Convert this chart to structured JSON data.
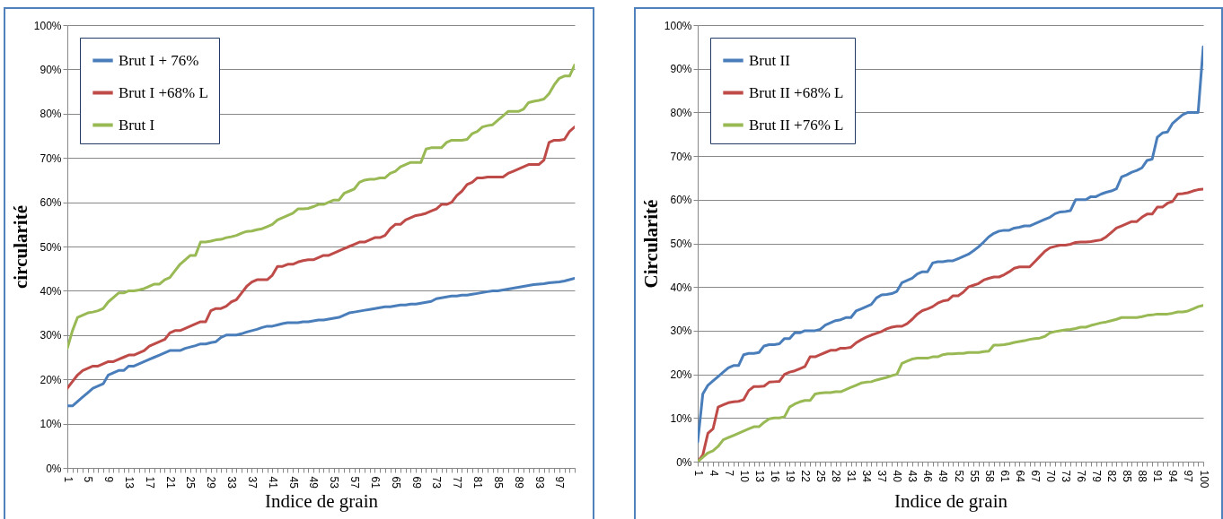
{
  "chart_data": [
    {
      "type": "line",
      "xlabel": "Indice de grain",
      "ylabel": "circularité",
      "categories": [
        "1",
        null,
        null,
        null,
        "5",
        null,
        null,
        null,
        "9",
        null,
        null,
        null,
        "13",
        null,
        null,
        null,
        "17",
        null,
        null,
        null,
        "21",
        null,
        null,
        null,
        "25",
        null,
        null,
        null,
        "29",
        null,
        null,
        null,
        "33",
        null,
        null,
        null,
        "37",
        null,
        null,
        null,
        "41",
        null,
        null,
        null,
        "45",
        null,
        null,
        null,
        "49",
        null,
        null,
        null,
        "53",
        null,
        null,
        null,
        "57",
        null,
        null,
        null,
        "61",
        null,
        null,
        null,
        "65",
        null,
        null,
        null,
        "69",
        null,
        null,
        null,
        "73",
        null,
        null,
        null,
        "77",
        null,
        null,
        null,
        "81",
        null,
        null,
        null,
        "85",
        null,
        null,
        null,
        "89",
        null,
        null,
        null,
        "93",
        null,
        null,
        null,
        "97",
        null,
        null,
        null
      ],
      "series": [
        {
          "name": "Brut I + 76%",
          "color": "#4a7ebb",
          "values": [
            14,
            14,
            15,
            16,
            17,
            18,
            18.5,
            19,
            21,
            21.5,
            22,
            22,
            23,
            23,
            23.5,
            24,
            24.5,
            25,
            25.5,
            26,
            26.5,
            26.5,
            26.5,
            27,
            27.3,
            27.6,
            28,
            28,
            28.3,
            28.5,
            29.5,
            30,
            30,
            30,
            30.3,
            30.7,
            31,
            31.3,
            31.7,
            32,
            32,
            32.3,
            32.6,
            32.8,
            32.8,
            32.8,
            33,
            33,
            33.2,
            33.4,
            33.4,
            33.6,
            33.8,
            34,
            34.5,
            35,
            35.2,
            35.4,
            35.6,
            35.8,
            36,
            36.2,
            36.4,
            36.4,
            36.6,
            36.8,
            36.8,
            37,
            37,
            37.2,
            37.4,
            37.6,
            38.2,
            38.4,
            38.6,
            38.8,
            38.8,
            39,
            39,
            39.2,
            39.4,
            39.6,
            39.8,
            40,
            40,
            40.2,
            40.4,
            40.6,
            40.8,
            41,
            41.2,
            41.4,
            41.5,
            41.6,
            41.8,
            41.9,
            42,
            42.2,
            42.5,
            42.8
          ]
        },
        {
          "name": "Brut I +68% L",
          "color": "#be4b48",
          "values": [
            18,
            19.5,
            21,
            22,
            22.5,
            23,
            23,
            23.5,
            24,
            24,
            24.5,
            25,
            25.5,
            25.5,
            26,
            26.5,
            27.5,
            28,
            28.5,
            29,
            30.5,
            31,
            31,
            31.5,
            32,
            32.5,
            33,
            33,
            35.5,
            36,
            36,
            36.5,
            37.5,
            38,
            39.5,
            41,
            42,
            42.5,
            42.5,
            42.5,
            43.5,
            45.5,
            45.5,
            46,
            46,
            46.5,
            46.8,
            47,
            47,
            47.5,
            48,
            48,
            48.5,
            49,
            49.5,
            50,
            50.5,
            51,
            51,
            51.5,
            52,
            52,
            52.5,
            54,
            55,
            55,
            56,
            56.5,
            57,
            57.2,
            57.5,
            58,
            58.5,
            59.5,
            59.5,
            60,
            61.5,
            62.5,
            64,
            64.5,
            65.5,
            65.5,
            65.7,
            65.7,
            65.7,
            65.7,
            66.5,
            67,
            67.5,
            68,
            68.5,
            68.5,
            68.5,
            69.5,
            73.5,
            74,
            74,
            74.2,
            76,
            77
          ]
        },
        {
          "name": "Brut I",
          "color": "#98b954",
          "values": [
            27,
            31,
            34,
            34.5,
            35,
            35.2,
            35.5,
            36,
            37.5,
            38.5,
            39.5,
            39.5,
            40,
            40,
            40.2,
            40.5,
            41,
            41.5,
            41.5,
            42.5,
            43,
            44.5,
            46,
            47,
            48,
            48,
            51,
            51,
            51.2,
            51.5,
            51.6,
            52,
            52.2,
            52.5,
            53,
            53.4,
            53.5,
            53.8,
            54,
            54.5,
            55,
            56,
            56.5,
            57,
            57.5,
            58.5,
            58.5,
            58.6,
            59,
            59.5,
            59.5,
            60,
            60.5,
            60.5,
            62,
            62.5,
            63,
            64.5,
            65,
            65.2,
            65.2,
            65.5,
            65.5,
            66.5,
            67,
            68,
            68.5,
            69,
            69,
            69,
            72,
            72.3,
            72.3,
            72.3,
            73.5,
            74,
            74,
            74,
            74.2,
            75.5,
            76,
            77,
            77.3,
            77.5,
            78.5,
            79.5,
            80.5,
            80.5,
            80.5,
            81,
            82.5,
            82.8,
            83,
            83.3,
            84.5,
            86.5,
            88,
            88.5,
            88.5,
            91
          ]
        }
      ],
      "ylim": [
        0,
        100
      ],
      "yticks": [
        {
          "value": 0,
          "label": "0%"
        },
        {
          "value": 10,
          "label": "10%"
        },
        {
          "value": 20,
          "label": "20%"
        },
        {
          "value": 30,
          "label": "30%"
        },
        {
          "value": 40,
          "label": "40%"
        },
        {
          "value": 50,
          "label": "50%"
        },
        {
          "value": 60,
          "label": "60%"
        },
        {
          "value": 70,
          "label": "70%"
        },
        {
          "value": 80,
          "label": "80%"
        },
        {
          "value": 90,
          "label": "90%"
        },
        {
          "value": 100,
          "label": "100%"
        }
      ],
      "grid": "y",
      "legend": "top left"
    },
    {
      "type": "line",
      "xlabel": "Indice de grain",
      "ylabel": "Circularité",
      "categories": [
        "1",
        null,
        null,
        "4",
        null,
        null,
        "7",
        null,
        null,
        "10",
        null,
        null,
        "13",
        null,
        null,
        "16",
        null,
        null,
        "19",
        null,
        null,
        "22",
        null,
        null,
        "25",
        null,
        null,
        "28",
        null,
        null,
        "31",
        null,
        null,
        "34",
        null,
        null,
        "37",
        null,
        null,
        "40",
        null,
        null,
        "43",
        null,
        null,
        "46",
        null,
        null,
        "49",
        null,
        null,
        "52",
        null,
        null,
        "55",
        null,
        null,
        "58",
        null,
        null,
        "61",
        null,
        null,
        "64",
        null,
        null,
        "67",
        null,
        null,
        "70",
        null,
        null,
        "73",
        null,
        null,
        "76",
        null,
        null,
        "79",
        null,
        null,
        "82",
        null,
        null,
        "85",
        null,
        null,
        "88",
        null,
        null,
        "91",
        null,
        null,
        "94",
        null,
        null,
        "97",
        null,
        null,
        "100"
      ],
      "series": [
        {
          "name": "Brut II",
          "color": "#4a7ebb",
          "values": [
            4.5,
            15.5,
            17.5,
            18.5,
            19.5,
            20.5,
            21.5,
            22,
            22,
            24.5,
            24.8,
            24.8,
            25,
            26.5,
            26.8,
            26.8,
            27,
            28.2,
            28.2,
            29.5,
            29.5,
            30,
            30,
            30,
            30.3,
            31.3,
            31.8,
            32.3,
            32.5,
            33,
            33,
            34.5,
            35,
            35.5,
            36,
            37.5,
            38.2,
            38.3,
            38.5,
            39,
            41,
            41.5,
            42,
            43,
            43.5,
            43.5,
            45.5,
            45.8,
            45.8,
            46,
            46,
            46.5,
            47,
            47.5,
            48.3,
            49.2,
            50.3,
            51.5,
            52.3,
            52.8,
            53,
            53,
            53.5,
            53.7,
            54,
            54,
            54.5,
            55,
            55.5,
            56,
            56.8,
            57.2,
            57.3,
            57.5,
            60,
            60,
            60,
            60.7,
            60.7,
            61.3,
            61.7,
            62,
            62.5,
            65.2,
            65.7,
            66.3,
            66.7,
            67.3,
            69,
            69.3,
            74.3,
            75.3,
            75.5,
            77.5,
            78.5,
            79.5,
            80,
            80,
            80,
            95
          ]
        },
        {
          "name": "Brut II +68% L",
          "color": "#be4b48",
          "values": [
            0,
            1.5,
            6.5,
            7.5,
            12.5,
            13,
            13.5,
            13.7,
            13.8,
            14.2,
            16.3,
            17.2,
            17.2,
            17.3,
            18.2,
            18.3,
            18.4,
            20,
            20.5,
            20.8,
            21.3,
            21.8,
            24,
            24,
            24.5,
            25,
            25.5,
            25.5,
            26,
            26,
            26.2,
            27.2,
            27.9,
            28.5,
            29,
            29.4,
            29.8,
            30.4,
            30.8,
            31,
            31,
            31.6,
            32.6,
            33.8,
            34.6,
            35,
            35.5,
            36.3,
            36.8,
            37,
            38,
            38,
            38.8,
            40,
            40.4,
            40.8,
            41.6,
            42,
            42.3,
            42.3,
            42.8,
            43.5,
            44.3,
            44.6,
            44.6,
            44.6,
            45.8,
            47,
            48.2,
            49,
            49.3,
            49.6,
            49.6,
            49.8,
            50.2,
            50.3,
            50.3,
            50.4,
            50.6,
            50.8,
            51.5,
            52.5,
            53.5,
            54,
            54.5,
            55,
            55,
            56,
            56.7,
            56.7,
            58.3,
            58.3,
            59.2,
            59.6,
            61.3,
            61.4,
            61.6,
            62,
            62.3,
            62.4
          ]
        },
        {
          "name": "Brut II +76% L",
          "color": "#98b954",
          "values": [
            0,
            1,
            2,
            2.5,
            3.5,
            5,
            5.5,
            6,
            6.5,
            7,
            7.5,
            8,
            8,
            9,
            9.8,
            10,
            10,
            10.3,
            12.5,
            13.2,
            13.7,
            14,
            14,
            15.5,
            15.7,
            15.8,
            15.8,
            16,
            16,
            16.5,
            17,
            17.5,
            18,
            18.2,
            18.3,
            18.7,
            19,
            19.3,
            19.7,
            20,
            22.5,
            23,
            23.5,
            23.7,
            23.7,
            23.7,
            24,
            24,
            24.5,
            24.7,
            24.7,
            24.8,
            24.8,
            25,
            25,
            25,
            25.2,
            25.3,
            26.7,
            26.7,
            26.8,
            27,
            27.3,
            27.5,
            27.7,
            28,
            28.2,
            28.3,
            28.7,
            29.5,
            29.8,
            30,
            30.2,
            30.3,
            30.5,
            30.8,
            30.8,
            31.2,
            31.5,
            31.8,
            32,
            32.3,
            32.6,
            33,
            33,
            33,
            33,
            33.2,
            33.5,
            33.6,
            33.8,
            33.8,
            33.8,
            34,
            34.3,
            34.3,
            34.5,
            35,
            35.5,
            35.8
          ]
        }
      ],
      "ylim": [
        0,
        100
      ],
      "yticks": [
        {
          "value": 0,
          "label": "0%"
        },
        {
          "value": 10,
          "label": "10%"
        },
        {
          "value": 20,
          "label": "20%"
        },
        {
          "value": 30,
          "label": "30%"
        },
        {
          "value": 40,
          "label": "40%"
        },
        {
          "value": 50,
          "label": "50%"
        },
        {
          "value": 60,
          "label": "60%"
        },
        {
          "value": 70,
          "label": "70%"
        },
        {
          "value": 80,
          "label": "80%"
        },
        {
          "value": 90,
          "label": "90%"
        },
        {
          "value": 100,
          "label": "100%"
        }
      ],
      "grid": "y",
      "legend": "top left"
    }
  ]
}
